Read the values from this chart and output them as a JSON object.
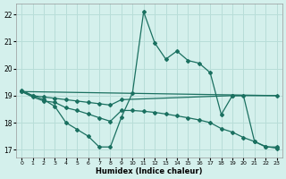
{
  "xlabel": "Humidex (Indice chaleur)",
  "bg_color": "#d4f0ec",
  "grid_color": "#b8ddd8",
  "line_color": "#1a7060",
  "xlim": [
    -0.5,
    23.5
  ],
  "ylim": [
    16.7,
    22.4
  ],
  "xticks": [
    0,
    1,
    2,
    3,
    4,
    5,
    6,
    7,
    8,
    9,
    10,
    11,
    12,
    13,
    14,
    15,
    16,
    17,
    18,
    19,
    20,
    21,
    22,
    23
  ],
  "yticks": [
    17,
    18,
    19,
    20,
    21,
    22
  ],
  "series1_x": [
    0,
    1,
    2,
    3,
    4,
    5,
    6,
    7,
    8,
    9,
    10,
    11,
    12,
    13,
    14,
    15,
    16,
    17,
    18,
    19,
    20,
    21,
    22,
    23
  ],
  "series1_y": [
    19.2,
    19.0,
    18.85,
    18.6,
    18.0,
    17.75,
    17.5,
    17.1,
    17.1,
    18.2,
    19.1,
    22.1,
    20.95,
    20.35,
    20.65,
    20.3,
    20.2,
    19.85,
    18.3,
    19.0,
    19.0,
    17.3,
    17.1,
    17.1
  ],
  "series2_x": [
    0,
    1,
    2,
    3,
    4,
    5,
    6,
    7,
    8,
    9,
    19,
    23
  ],
  "series2_y": [
    19.15,
    19.0,
    18.95,
    18.9,
    18.85,
    18.8,
    18.75,
    18.7,
    18.65,
    18.85,
    19.0,
    19.0
  ],
  "series3_x": [
    0,
    23
  ],
  "series3_y": [
    19.15,
    19.0
  ],
  "series4_x": [
    0,
    1,
    2,
    3,
    4,
    5,
    6,
    7,
    8,
    9,
    10,
    11,
    12,
    13,
    14,
    15,
    16,
    17,
    18,
    19,
    20,
    21,
    22,
    23
  ],
  "series4_y": [
    19.15,
    18.95,
    18.8,
    18.75,
    18.55,
    18.45,
    18.32,
    18.18,
    18.05,
    18.45,
    18.45,
    18.42,
    18.38,
    18.32,
    18.25,
    18.18,
    18.1,
    18.0,
    17.78,
    17.65,
    17.45,
    17.3,
    17.12,
    17.05
  ]
}
